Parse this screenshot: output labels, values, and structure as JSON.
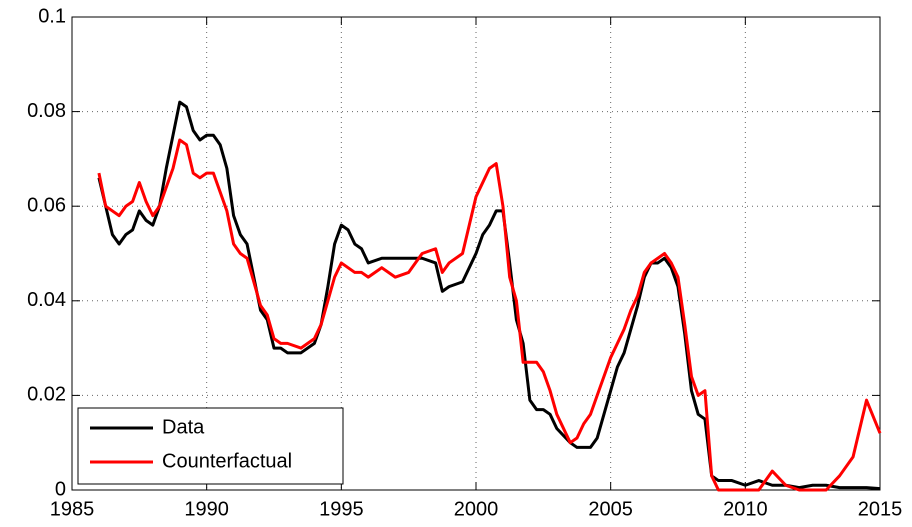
{
  "chart_data": {
    "type": "line",
    "x": [
      1986,
      1986.25,
      1986.5,
      1986.75,
      1987,
      1987.25,
      1987.5,
      1987.75,
      1988,
      1988.25,
      1988.5,
      1988.75,
      1989,
      1989.25,
      1989.5,
      1989.75,
      1990,
      1990.25,
      1990.5,
      1990.75,
      1991,
      1991.25,
      1991.5,
      1991.75,
      1992,
      1992.25,
      1992.5,
      1992.75,
      1993,
      1993.5,
      1994,
      1994.25,
      1994.5,
      1994.75,
      1995,
      1995.25,
      1995.5,
      1995.75,
      1996,
      1996.5,
      1997,
      1997.5,
      1998,
      1998.5,
      1998.75,
      1999,
      1999.5,
      2000,
      2000.25,
      2000.5,
      2000.75,
      2001,
      2001.25,
      2001.5,
      2001.75,
      2002,
      2002.25,
      2002.5,
      2002.75,
      2003,
      2003.5,
      2003.75,
      2004,
      2004.25,
      2004.5,
      2004.75,
      2005,
      2005.25,
      2005.5,
      2005.75,
      2006,
      2006.25,
      2006.5,
      2006.75,
      2007,
      2007.25,
      2007.5,
      2007.75,
      2008,
      2008.25,
      2008.5,
      2008.75,
      2009,
      2009.5,
      2010,
      2010.5,
      2011,
      2011.5,
      2012,
      2012.5,
      2013,
      2013.5,
      2014,
      2014.5,
      2015
    ],
    "series": [
      {
        "name": "Data",
        "color": "#000000",
        "values": [
          0.066,
          0.06,
          0.054,
          0.052,
          0.054,
          0.055,
          0.059,
          0.057,
          0.056,
          0.06,
          0.068,
          0.075,
          0.082,
          0.081,
          0.076,
          0.074,
          0.075,
          0.075,
          0.073,
          0.068,
          0.058,
          0.054,
          0.052,
          0.045,
          0.038,
          0.036,
          0.03,
          0.03,
          0.029,
          0.029,
          0.031,
          0.035,
          0.043,
          0.052,
          0.056,
          0.055,
          0.052,
          0.051,
          0.048,
          0.049,
          0.049,
          0.049,
          0.049,
          0.048,
          0.042,
          0.043,
          0.044,
          0.05,
          0.054,
          0.056,
          0.059,
          0.059,
          0.048,
          0.036,
          0.031,
          0.019,
          0.017,
          0.017,
          0.016,
          0.013,
          0.01,
          0.009,
          0.009,
          0.009,
          0.011,
          0.016,
          0.021,
          0.026,
          0.029,
          0.034,
          0.039,
          0.045,
          0.048,
          0.048,
          0.049,
          0.047,
          0.043,
          0.033,
          0.021,
          0.016,
          0.015,
          0.003,
          0.002,
          0.002,
          0.001,
          0.002,
          0.001,
          0.001,
          0.0005,
          0.001,
          0.001,
          0.0005,
          0.0005,
          0.0005,
          0.0003
        ]
      },
      {
        "name": "Counterfactual",
        "color": "#ff0000",
        "values": [
          0.067,
          0.06,
          0.059,
          0.058,
          0.06,
          0.061,
          0.065,
          0.061,
          0.058,
          0.06,
          0.064,
          0.068,
          0.074,
          0.073,
          0.067,
          0.066,
          0.067,
          0.067,
          0.063,
          0.059,
          0.052,
          0.05,
          0.049,
          0.044,
          0.039,
          0.037,
          0.032,
          0.031,
          0.031,
          0.03,
          0.032,
          0.035,
          0.04,
          0.045,
          0.048,
          0.047,
          0.046,
          0.046,
          0.045,
          0.047,
          0.045,
          0.046,
          0.05,
          0.051,
          0.046,
          0.048,
          0.05,
          0.062,
          0.065,
          0.068,
          0.069,
          0.06,
          0.045,
          0.04,
          0.027,
          0.027,
          0.027,
          0.025,
          0.021,
          0.016,
          0.01,
          0.011,
          0.014,
          0.016,
          0.02,
          0.024,
          0.028,
          0.031,
          0.034,
          0.038,
          0.041,
          0.046,
          0.048,
          0.049,
          0.05,
          0.048,
          0.045,
          0.035,
          0.024,
          0.02,
          0.021,
          0.003,
          0,
          0,
          0,
          0,
          0.004,
          0.001,
          0,
          0,
          0,
          0.003,
          0.007,
          0.019,
          0.012
        ]
      }
    ],
    "xlim": [
      1985,
      2015
    ],
    "xticks": [
      1985,
      1990,
      1995,
      2000,
      2005,
      2010,
      2015
    ],
    "ylim": [
      0,
      0.1
    ],
    "yticks": [
      0,
      0.02,
      0.04,
      0.06,
      0.08,
      0.1
    ],
    "grid": true,
    "legend": "lower left"
  }
}
